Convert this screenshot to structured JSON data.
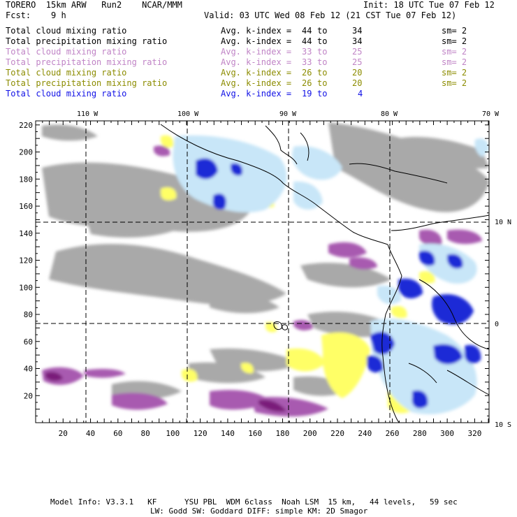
{
  "header": {
    "model": "TORERO  15km ARW   Run2    NCAR/MMM",
    "init": "Init: 18 UTC Tue 07 Feb 12",
    "fcst": "Fcst:    9 h",
    "valid": "Valid: 03 UTC Wed 08 Feb 12 (21 CST Tue 07 Feb 12)"
  },
  "colors": {
    "black": "#000000",
    "violet": "#c084c6",
    "olive": "#8c8c00",
    "blue": "#1010e6",
    "gray": "#a9a9a9",
    "purple": "#a85ab0",
    "yellow": "#ffff66",
    "lightblue": "#c8e6f8",
    "darkblue": "#1a2ad6"
  },
  "legend": [
    {
      "field": "Total cloud mixing ratio",
      "stat": "Avg. k-index =",
      "k1": "44",
      "to": "to",
      "k2": "34",
      "sm": "sm= 2",
      "color": "#000000"
    },
    {
      "field": "Total precipitation mixing ratio",
      "stat": "Avg. k-index =",
      "k1": "44",
      "to": "to",
      "k2": "34",
      "sm": "sm= 2",
      "color": "#000000"
    },
    {
      "field": "Total cloud mixing ratio",
      "stat": "Avg. k-index =",
      "k1": "33",
      "to": "to",
      "k2": "25",
      "sm": "sm= 2",
      "color": "#c084c6"
    },
    {
      "field": "Total precipitation mixing ratio",
      "stat": "Avg. k-index =",
      "k1": "33",
      "to": "to",
      "k2": "25",
      "sm": "sm= 2",
      "color": "#c084c6"
    },
    {
      "field": "Total cloud mixing ratio",
      "stat": "Avg. k-index =",
      "k1": "26",
      "to": "to",
      "k2": "20",
      "sm": "sm= 2",
      "color": "#8c8c00"
    },
    {
      "field": "Total precipitation mixing ratio",
      "stat": "Avg. k-index =",
      "k1": "26",
      "to": "to",
      "k2": "20",
      "sm": "sm= 2",
      "color": "#8c8c00"
    },
    {
      "field": "Total cloud mixing ratio",
      "stat": "Avg. k-index =",
      "k1": "19",
      "to": "to",
      "k2": "4",
      "sm": "",
      "color": "#1010e6"
    }
  ],
  "map": {
    "lon_labels": [
      "110 W",
      "100 W",
      "90 W",
      "80 W",
      "70 W"
    ],
    "lat_labels": [
      "10 N",
      "0",
      "10 S"
    ],
    "x_ticks": [
      "20",
      "40",
      "60",
      "80",
      "100",
      "120",
      "140",
      "160",
      "180",
      "200",
      "220",
      "240",
      "260",
      "280",
      "300",
      "320"
    ],
    "y_ticks": [
      "20",
      "40",
      "60",
      "80",
      "100",
      "120",
      "140",
      "160",
      "180",
      "200",
      "220"
    ]
  },
  "footer": {
    "line1": "Model Info: V3.3.1   KF      YSU PBL  WDM 6class  Noah LSM  15 km,   44 levels,   59 sec",
    "line2": "LW: Godd SW: Goddard DIFF: simple KM: 2D Smagor"
  }
}
